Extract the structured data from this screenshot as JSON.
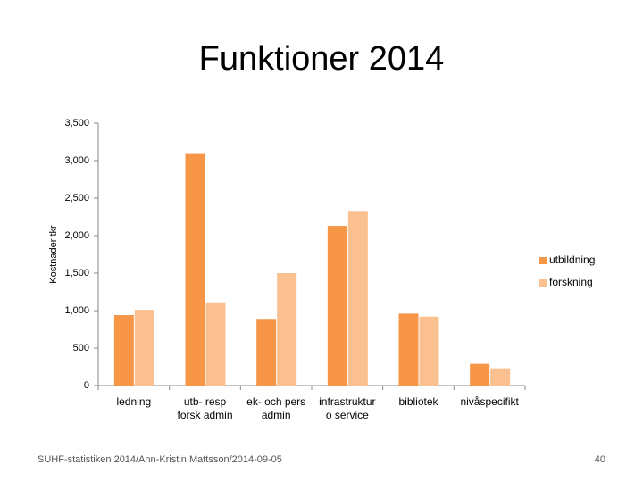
{
  "chart_data": {
    "type": "bar",
    "title": "Funktioner 2014",
    "y_label": "Kostnader tkr",
    "categories": [
      "ledning",
      "utb- resp\nforsk admin",
      "ek- och pers\nadmin",
      "infrastruktur\no service",
      "bibliotek",
      "nivåspecifikt"
    ],
    "series": [
      {
        "name": "utbildning",
        "color": "#f79646",
        "values": [
          940,
          3100,
          890,
          2130,
          960,
          290
        ]
      },
      {
        "name": "forskning",
        "color": "#fac090",
        "values": [
          1010,
          1110,
          1500,
          2330,
          920,
          230
        ]
      }
    ],
    "ylim": [
      0,
      3500
    ],
    "yticks": [
      0,
      500,
      {
        "value": 1000,
        "label": "1,000"
      },
      {
        "value": 1500,
        "label": "1,500"
      },
      {
        "value": 2000,
        "label": "2,000"
      },
      {
        "value": 2500,
        "label": "2,500"
      },
      {
        "value": 3000,
        "label": "3,000"
      },
      {
        "value": 3500,
        "label": "3,500"
      }
    ],
    "grid": false,
    "legend": "right"
  },
  "footer": "SUHF-statistiken 2014/Ann-Kristin Mattsson/2014-09-05",
  "page_number": "40"
}
